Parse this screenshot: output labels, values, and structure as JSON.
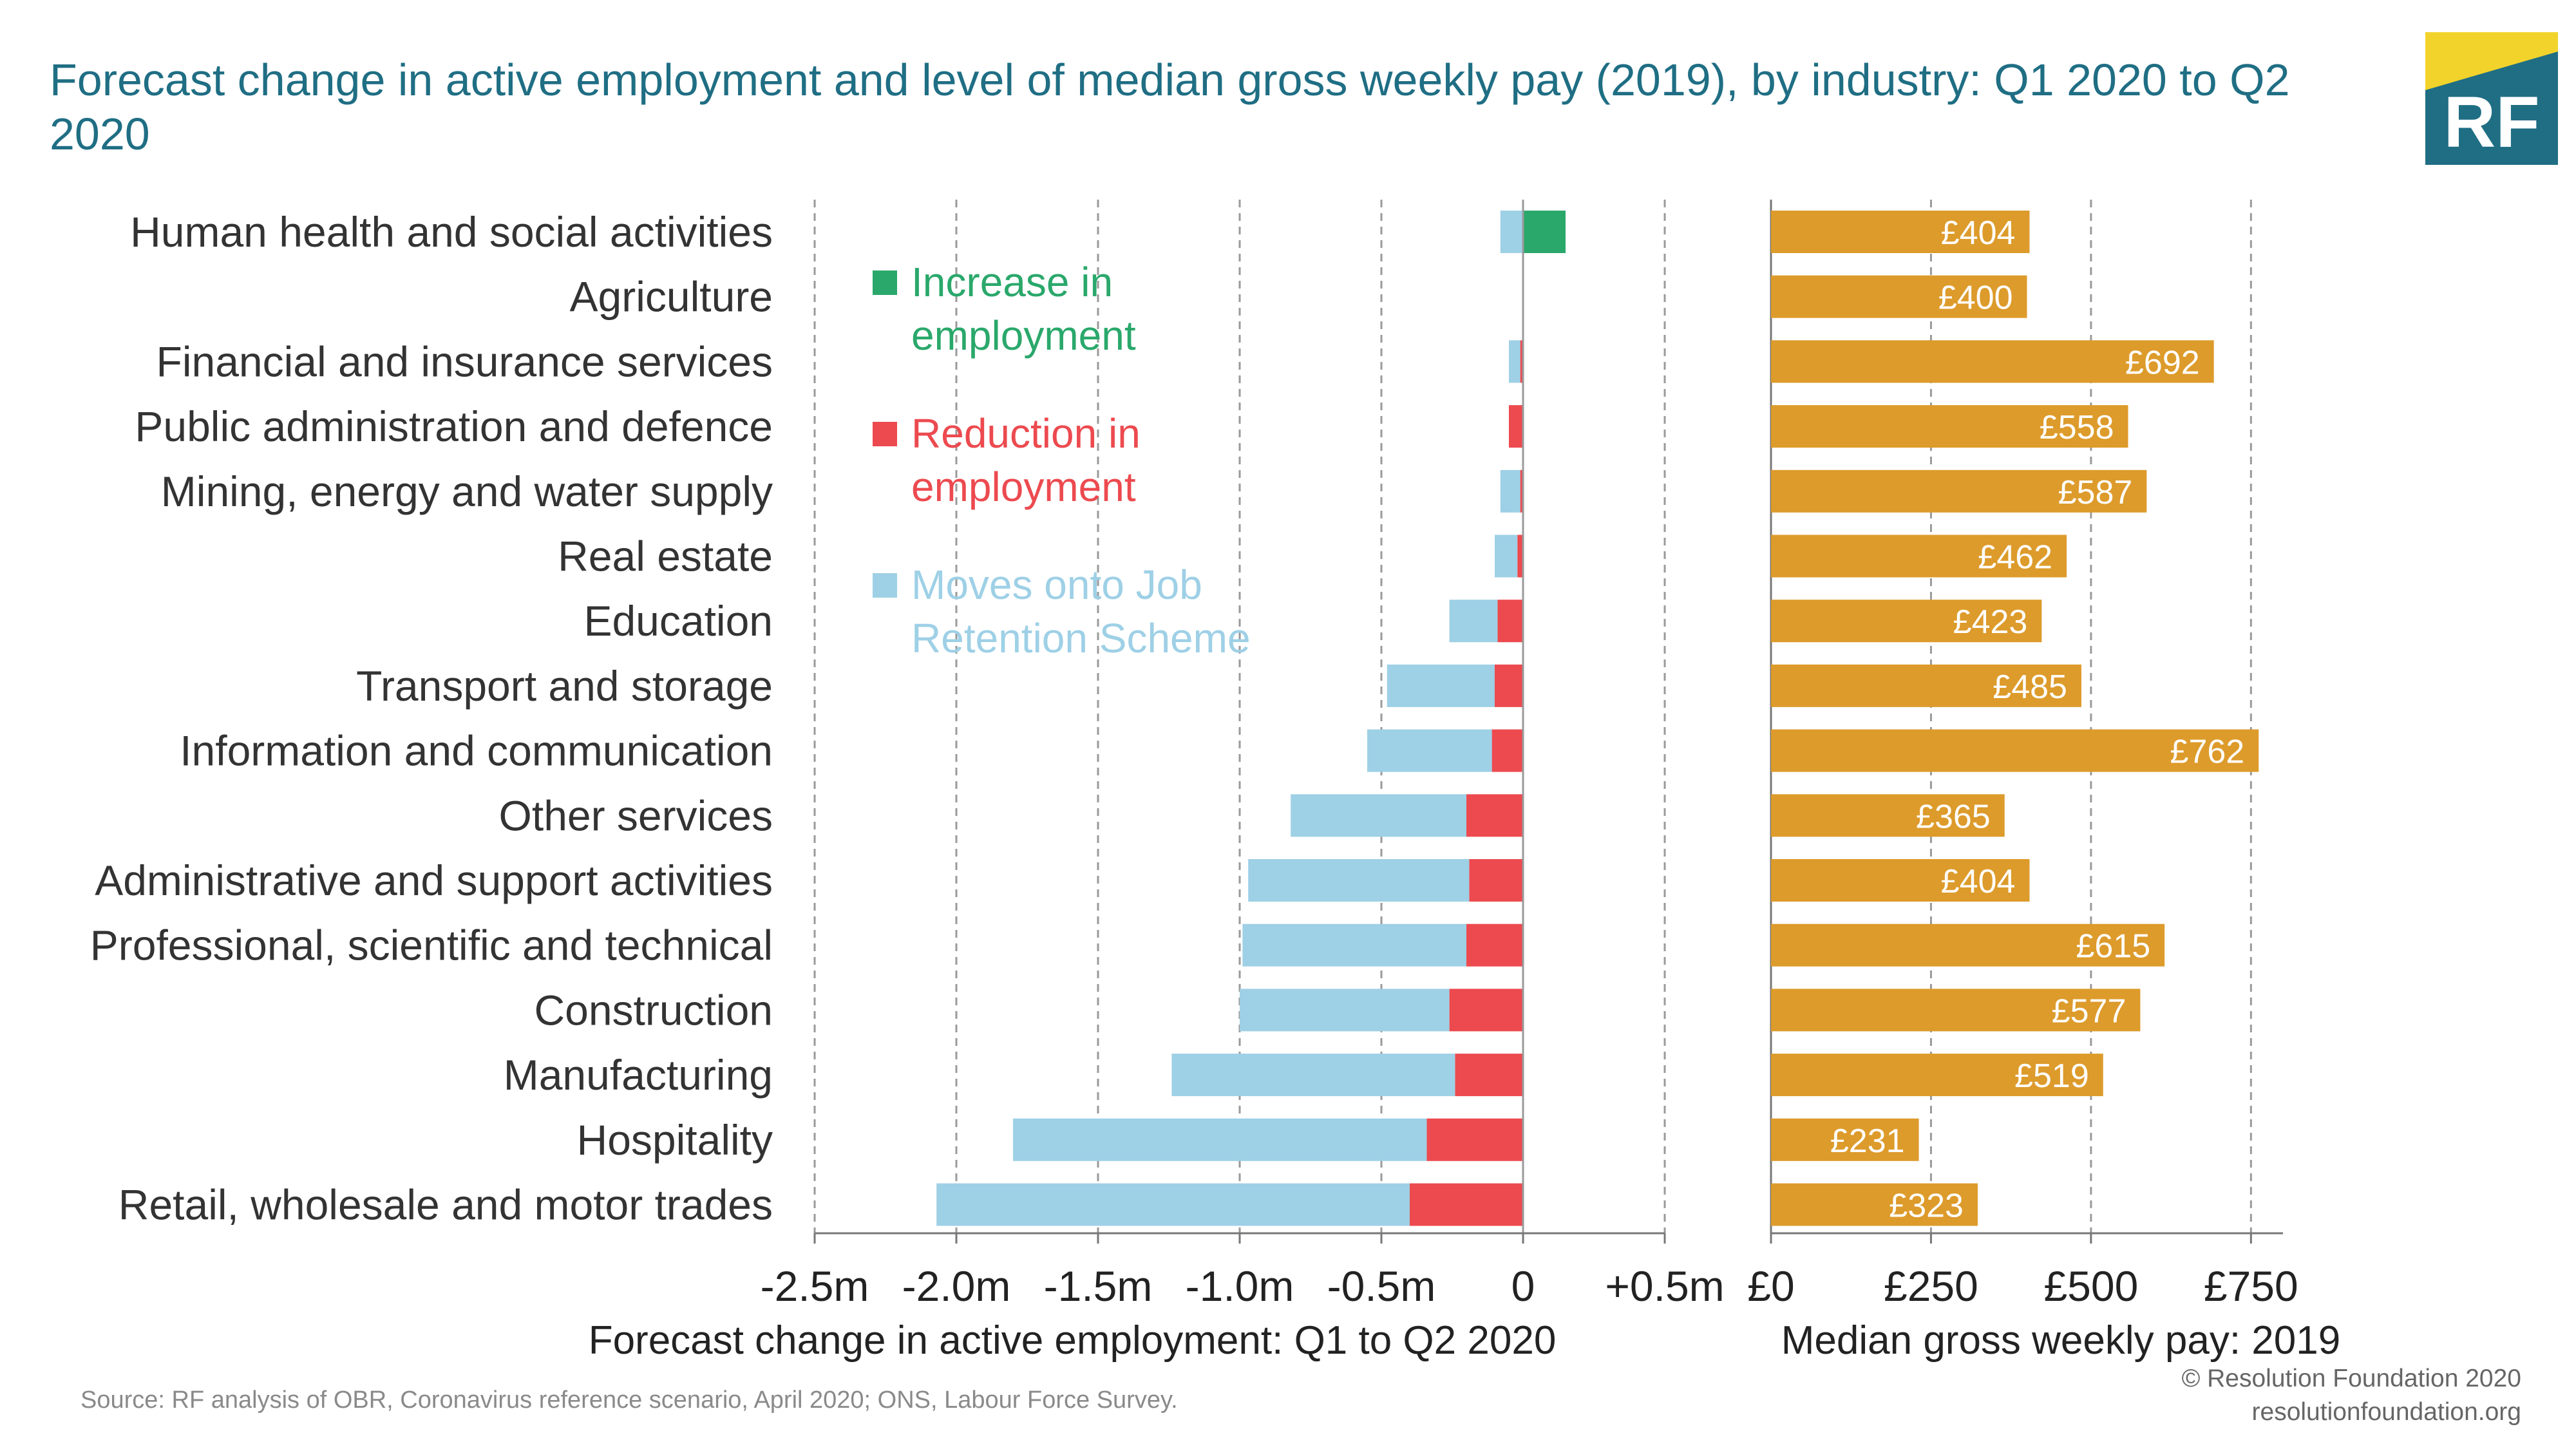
{
  "title": "Forecast change in active employment and level of median gross weekly pay (2019), by industry: Q1 2020 to Q2 2020",
  "logo": {
    "text": "RF",
    "colors": {
      "navy": "#1f6e84",
      "yellow": "#f2d32b"
    }
  },
  "source": "Source: RF analysis of OBR, Coronavirus reference scenario, April 2020; ONS, Labour Force Survey.",
  "copyright": {
    "line1": "© Resolution Foundation 2020",
    "line2": "resolutionfoundation.org"
  },
  "colors": {
    "increase": "#2aa86b",
    "reduction": "#ec4a4f",
    "jrs": "#9ed0e6",
    "pay": "#dd9b2b",
    "grid": "#9a9a9a"
  },
  "chart_data": [
    {
      "type": "bar",
      "orientation": "horizontal",
      "stacked": true,
      "xlabel": "Forecast change in active employment: Q1 to Q2 2020",
      "xlim": [
        -2.5,
        0.5
      ],
      "xticks": [
        -2.5,
        -2.0,
        -1.5,
        -1.0,
        -0.5,
        0,
        0.5
      ],
      "xtick_labels": [
        "-2.5m",
        "-2.0m",
        "-1.5m",
        "-1.0m",
        "-0.5m",
        "0",
        "+0.5m"
      ],
      "grid": true,
      "categories": [
        "Human health and social activities",
        "Agriculture",
        "Financial and insurance services",
        "Public administration and defence",
        "Mining, energy and water supply",
        "Real estate",
        "Education",
        "Transport and storage",
        "Information and communication",
        "Other services",
        "Administrative and support activities",
        "Professional, scientific and technical",
        "Construction",
        "Manufacturing",
        "Hospitality",
        "Retail, wholesale and motor trades"
      ],
      "series": [
        {
          "name": "Increase in employment",
          "color_key": "increase",
          "values": [
            0.15,
            0,
            0,
            0,
            0,
            0,
            0,
            0,
            0,
            0,
            0,
            0,
            0,
            0,
            0,
            0
          ]
        },
        {
          "name": "Reduction in employment",
          "color_key": "reduction",
          "values": [
            0,
            0,
            -0.01,
            -0.05,
            -0.01,
            -0.02,
            -0.09,
            -0.1,
            -0.11,
            -0.2,
            -0.19,
            -0.2,
            -0.26,
            -0.24,
            -0.34,
            -0.4
          ]
        },
        {
          "name": "Moves onto Job Retention Scheme",
          "color_key": "jrs",
          "values": [
            -0.08,
            0,
            -0.04,
            0,
            -0.07,
            -0.08,
            -0.17,
            -0.38,
            -0.44,
            -0.62,
            -0.78,
            -0.79,
            -0.74,
            -1.0,
            -1.46,
            -1.67
          ]
        }
      ],
      "legend": {
        "placement": "inside-left",
        "items": [
          {
            "line1": "Increase in",
            "line2": "employment",
            "color_key": "increase"
          },
          {
            "line1": "Reduction in",
            "line2": "employment",
            "color_key": "reduction"
          },
          {
            "line1": "Moves onto Job",
            "line2": "Retention Scheme",
            "color_key": "jrs"
          }
        ]
      }
    },
    {
      "type": "bar",
      "orientation": "horizontal",
      "xlabel": "Median gross weekly pay: 2019",
      "xlim": [
        0,
        800
      ],
      "xticks": [
        0,
        250,
        500,
        750
      ],
      "xtick_labels": [
        "£0",
        "£250",
        "£500",
        "£750"
      ],
      "grid": true,
      "values": [
        404,
        400,
        692,
        558,
        587,
        462,
        423,
        485,
        762,
        365,
        404,
        615,
        577,
        519,
        231,
        323
      ],
      "labels": [
        "£404",
        "£400",
        "£692",
        "£558",
        "£587",
        "£462",
        "£423",
        "£485",
        "£762",
        "£365",
        "£404",
        "£615",
        "£577",
        "£519",
        "£231",
        "£323"
      ]
    }
  ]
}
